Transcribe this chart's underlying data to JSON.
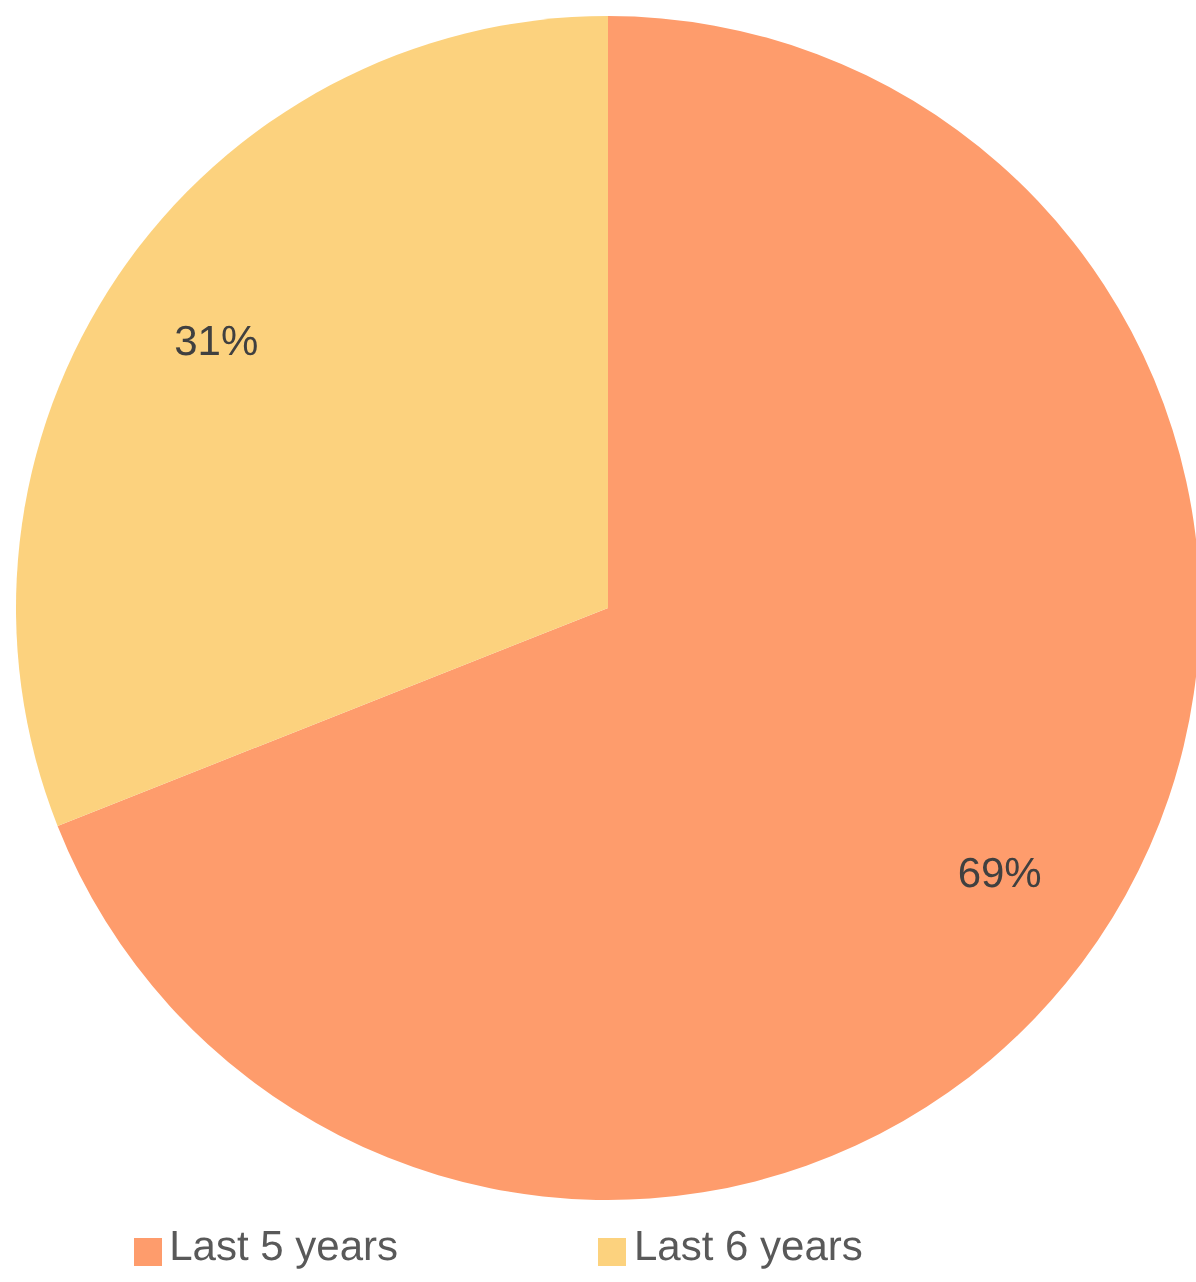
{
  "chart_data": {
    "type": "pie",
    "categories": [
      "Last 5 years",
      "Last 6 years"
    ],
    "values": [
      69,
      31
    ],
    "colors": [
      "#fe9c6c",
      "#fcd27e"
    ],
    "value_labels": [
      "69%",
      "31%"
    ],
    "legend": "bottom"
  }
}
